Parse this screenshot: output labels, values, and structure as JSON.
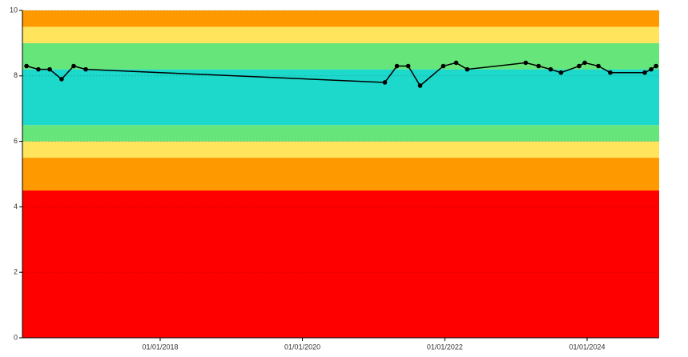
{
  "chart_data": {
    "type": "line",
    "x": [
      "2016-02-15",
      "2016-04-16",
      "2016-06-13",
      "2016-08-13",
      "2016-10-14",
      "2016-12-15",
      "2021-02-27",
      "2021-04-30",
      "2021-06-27",
      "2021-08-27",
      "2021-12-24",
      "2022-02-28",
      "2022-04-26",
      "2023-02-20",
      "2023-04-27",
      "2023-06-28",
      "2023-08-20",
      "2023-11-21",
      "2023-12-20",
      "2024-02-28",
      "2024-04-29",
      "2024-10-23",
      "2024-11-25",
      "2024-12-20"
    ],
    "series": [
      {
        "color": "#000000",
        "values": [
          8.3,
          8.2,
          8.2,
          7.9,
          8.3,
          8.2,
          7.8,
          8.3,
          8.3,
          7.7,
          8.3,
          8.4,
          8.2,
          8.4,
          8.3,
          8.2,
          8.1,
          8.3,
          8.4,
          8.3,
          8.1,
          8.1,
          8.2,
          8.3
        ]
      }
    ],
    "bands": [
      {
        "from": 0,
        "to": 4.5,
        "color": "#ff0000"
      },
      {
        "from": 4.5,
        "to": 5.5,
        "color": "#ff9900"
      },
      {
        "from": 5.5,
        "to": 6,
        "color": "#ffe45c"
      },
      {
        "from": 6,
        "to": 6.5,
        "color": "#66e67a"
      },
      {
        "from": 6.5,
        "to": 8.2,
        "color": "#1dd9cc"
      },
      {
        "from": 8.2,
        "to": 9,
        "color": "#66e67a"
      },
      {
        "from": 9,
        "to": 9.5,
        "color": "#ffe45c"
      },
      {
        "from": 9.5,
        "to": 10,
        "color": "#ff9900"
      }
    ],
    "xlim": [
      "2016-01-25",
      "2025-01-05"
    ],
    "xticks": [
      {
        "value": "2018-01-01",
        "label": "01/01/2018"
      },
      {
        "value": "2020-01-01",
        "label": "01/01/2020"
      },
      {
        "value": "2022-01-01",
        "label": "01/01/2022"
      },
      {
        "value": "2024-01-01",
        "label": "01/01/2024"
      }
    ],
    "ylim": [
      0,
      10
    ],
    "yticks": [
      0,
      2,
      4,
      6,
      8,
      10
    ],
    "grid": true
  }
}
